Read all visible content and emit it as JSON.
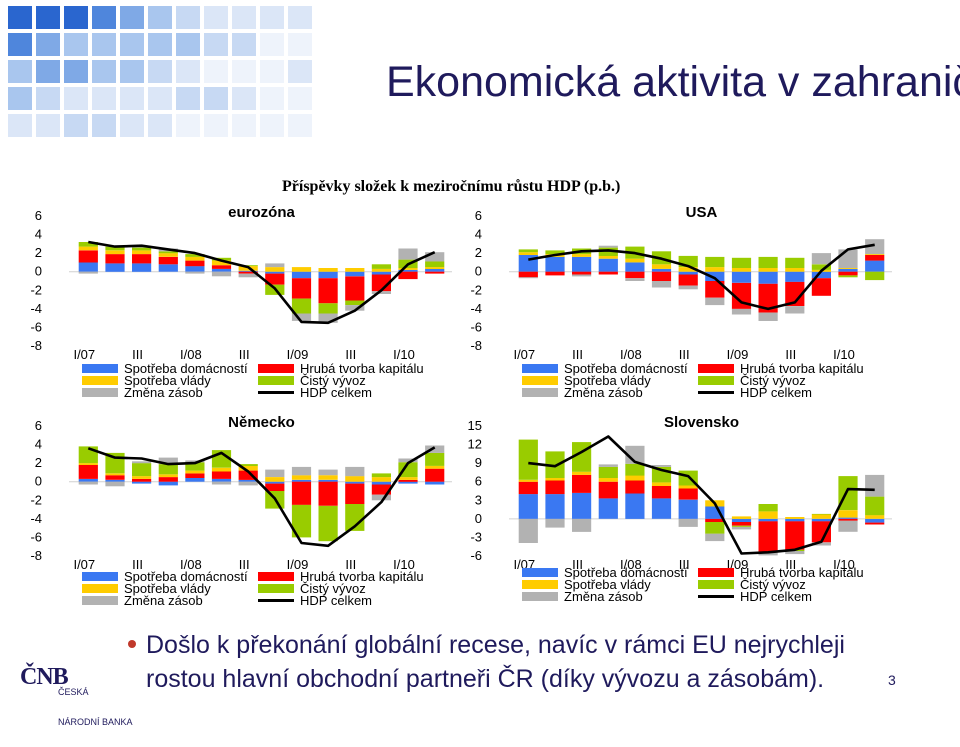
{
  "slide": {
    "title": "Ekonomická aktivita v zahraničí",
    "subtitle": "Příspěvky složek k meziročnímu růstu HDP (p.b.)",
    "conclusion_line1": "Došlo k překonání globální recese, navíc v rámci EU nejrychleji",
    "conclusion_line2": "rostou hlavní obchodní partneři ČR (díky vývozu a zásobám).",
    "page_number": "3",
    "logo": {
      "mark": "ČNB",
      "line1": "ČESKÁ",
      "line2": "NÁRODNÍ BANKA"
    }
  },
  "colors": {
    "consumption": "#3a78f2",
    "gfcf": "#ff0000",
    "government": "#ffcc00",
    "net_exports": "#99cc00",
    "inventories": "#b2b2b2",
    "gdp": "#000000"
  },
  "legend": {
    "consumption": "Spotřeba domácností",
    "gfcf": "Hrubá tvorba kapitálu",
    "government": "Spotřeba vlády",
    "net_exports": "Čistý vývoz",
    "inventories": "Změna zásob",
    "gdp": "HDP celkem"
  },
  "chart_data": [
    {
      "type": "bar",
      "title": "eurozóna",
      "categories": [
        "I/07",
        "II/07",
        "III/07",
        "IV/07",
        "I/08",
        "II/08",
        "III/08",
        "IV/08",
        "I/09",
        "II/09",
        "III/09",
        "IV/09",
        "I/10",
        "II/10"
      ],
      "tick_labels": [
        "I/07",
        "III",
        "I/08",
        "III",
        "I/09",
        "III",
        "I/10"
      ],
      "y_ticks": [
        "6",
        "4",
        "2",
        "0",
        "-2",
        "-4",
        "-6",
        "-8"
      ],
      "ylim": [
        -8,
        6
      ],
      "series": [
        {
          "name": "Spotřeba domácností",
          "values": [
            1.0,
            0.9,
            0.9,
            0.8,
            0.6,
            0.3,
            0.1,
            -0.2,
            -0.7,
            -0.7,
            -0.5,
            -0.3,
            0.2,
            0.3
          ]
        },
        {
          "name": "Hrubá tvorba kapitálu",
          "values": [
            1.3,
            1.0,
            1.0,
            0.8,
            0.6,
            0.4,
            -0.2,
            -1.2,
            -2.2,
            -2.7,
            -2.6,
            -1.8,
            -0.8,
            -0.2
          ]
        },
        {
          "name": "Spotřeba vlády",
          "values": [
            0.4,
            0.4,
            0.4,
            0.4,
            0.4,
            0.5,
            0.5,
            0.5,
            0.5,
            0.4,
            0.4,
            0.3,
            0.2,
            0.2
          ]
        },
        {
          "name": "Čistý vývoz",
          "values": [
            0.5,
            0.4,
            0.3,
            0.2,
            0.3,
            0.3,
            0.1,
            -1.1,
            -1.6,
            -1.1,
            -0.5,
            0.5,
            0.9,
            0.6
          ]
        },
        {
          "name": "Změna zásob",
          "values": [
            -0.2,
            0.1,
            0.2,
            0.3,
            -0.2,
            -0.5,
            -0.4,
            0.4,
            -0.8,
            -1.0,
            -0.6,
            -0.3,
            1.2,
            1.0
          ]
        },
        {
          "name": "HDP celkem",
          "type": "line",
          "values": [
            3.2,
            2.7,
            2.8,
            2.4,
            2.0,
            1.2,
            0.5,
            -1.8,
            -5.4,
            -5.5,
            -4.2,
            -2.0,
            0.8,
            2.1
          ]
        }
      ]
    },
    {
      "type": "bar",
      "title": "USA",
      "categories": [
        "I/07",
        "II/07",
        "III/07",
        "IV/07",
        "I/08",
        "II/08",
        "III/08",
        "IV/08",
        "I/09",
        "II/09",
        "III/09",
        "IV/09",
        "I/10",
        "II/10"
      ],
      "tick_labels": [
        "I/07",
        "III",
        "I/08",
        "III",
        "I/09",
        "III",
        "I/10"
      ],
      "y_ticks": [
        "6",
        "4",
        "2",
        "0",
        "-2",
        "-4",
        "-6",
        "-8"
      ],
      "ylim": [
        -8,
        6
      ],
      "series": [
        {
          "name": "Spotřeba domácností",
          "values": [
            1.8,
            1.6,
            1.6,
            1.4,
            1.0,
            0.3,
            -0.3,
            -1.0,
            -1.2,
            -1.3,
            -1.1,
            -0.7,
            0.3,
            1.2
          ]
        },
        {
          "name": "Hrubá tvorba kapitálu",
          "values": [
            -0.6,
            -0.4,
            -0.3,
            -0.3,
            -0.7,
            -1.0,
            -1.2,
            -1.8,
            -2.8,
            -3.1,
            -2.6,
            -1.9,
            -0.4,
            0.6
          ]
        },
        {
          "name": "Spotřeba vlády",
          "values": [
            0.3,
            0.3,
            0.3,
            0.3,
            0.4,
            0.5,
            0.5,
            0.5,
            0.4,
            0.4,
            0.4,
            0.2,
            0.1,
            0.1
          ]
        },
        {
          "name": "Čistý vývoz",
          "values": [
            0.3,
            0.4,
            0.6,
            0.9,
            1.3,
            1.4,
            1.2,
            1.1,
            1.1,
            1.2,
            1.1,
            0.6,
            -0.2,
            -0.9
          ]
        },
        {
          "name": "Změna zásob",
          "values": [
            -0.1,
            0.0,
            -0.2,
            0.2,
            -0.3,
            -0.7,
            -0.4,
            -0.8,
            -0.6,
            -0.9,
            -0.8,
            1.2,
            2.0,
            1.6
          ]
        },
        {
          "name": "HDP celkem",
          "type": "line",
          "values": [
            1.3,
            1.8,
            2.2,
            2.3,
            2.0,
            1.4,
            0.6,
            -0.7,
            -3.3,
            -4.0,
            -3.3,
            0.1,
            2.4,
            2.9
          ]
        }
      ]
    },
    {
      "type": "bar",
      "title": "Německo",
      "categories": [
        "I/07",
        "II/07",
        "III/07",
        "IV/07",
        "I/08",
        "II/08",
        "III/08",
        "IV/08",
        "I/09",
        "II/09",
        "III/09",
        "IV/09",
        "I/10",
        "II/10"
      ],
      "tick_labels": [
        "I/07",
        "III",
        "I/08",
        "III",
        "I/09",
        "III",
        "I/10"
      ],
      "y_ticks": [
        "6",
        "4",
        "2",
        "0",
        "-2",
        "-4",
        "-6",
        "-8"
      ],
      "ylim": [
        -8,
        6
      ],
      "series": [
        {
          "name": "Spotřeba domácností",
          "values": [
            0.3,
            0.2,
            -0.2,
            -0.4,
            0.4,
            0.3,
            0.2,
            -0.2,
            0.2,
            0.2,
            -0.2,
            -0.3,
            -0.2,
            -0.3
          ]
        },
        {
          "name": "Hrubá tvorba kapitálu",
          "values": [
            1.5,
            0.5,
            0.3,
            0.5,
            0.5,
            0.8,
            1.0,
            -0.8,
            -2.5,
            -2.6,
            -2.2,
            -1.1,
            0.2,
            1.4
          ]
        },
        {
          "name": "Spotřeba vlády",
          "values": [
            0.2,
            0.2,
            0.3,
            0.3,
            0.3,
            0.4,
            0.5,
            0.5,
            0.5,
            0.5,
            0.6,
            0.5,
            0.3,
            0.3
          ]
        },
        {
          "name": "Čistý vývoz",
          "values": [
            1.8,
            2.2,
            1.4,
            1.1,
            0.9,
            1.9,
            0.2,
            -1.9,
            -3.5,
            -3.8,
            -2.9,
            0.4,
            1.6,
            1.4
          ]
        },
        {
          "name": "Změna zásob",
          "values": [
            -0.3,
            -0.5,
            0.2,
            0.7,
            0.2,
            -0.3,
            -0.4,
            0.8,
            0.9,
            0.6,
            1.0,
            -0.6,
            0.4,
            0.8
          ]
        },
        {
          "name": "HDP celkem",
          "type": "line",
          "values": [
            3.6,
            2.6,
            2.5,
            1.9,
            2.0,
            3.1,
            1.1,
            -1.8,
            -6.6,
            -6.9,
            -4.8,
            -2.2,
            2.0,
            3.7
          ]
        }
      ]
    },
    {
      "type": "bar",
      "title": "Slovensko",
      "categories": [
        "I/07",
        "II/07",
        "III/07",
        "IV/07",
        "I/08",
        "II/08",
        "III/08",
        "IV/08",
        "I/09",
        "II/09",
        "III/09",
        "IV/09",
        "I/10",
        "II/10"
      ],
      "tick_labels": [
        "I/07",
        "III",
        "I/08",
        "III",
        "I/09",
        "III",
        "I/10"
      ],
      "y_ticks": [
        "15",
        "12",
        "9",
        "6",
        "3",
        "0",
        "-3",
        "-6"
      ],
      "ylim": [
        -6,
        15
      ],
      "series": [
        {
          "name": "Spotřeba domácností",
          "values": [
            4.0,
            4.0,
            4.2,
            3.3,
            4.1,
            3.3,
            3.1,
            2.0,
            -0.5,
            -0.4,
            -0.4,
            -0.4,
            0.2,
            -0.6
          ]
        },
        {
          "name": "Hrubá tvorba kapitálu",
          "values": [
            2.0,
            2.2,
            2.9,
            2.7,
            2.1,
            2.0,
            1.8,
            -0.5,
            -0.6,
            -4.9,
            -4.6,
            -3.4,
            -0.3,
            -0.3
          ]
        },
        {
          "name": "Spotřeba vlády",
          "values": [
            0.3,
            0.4,
            0.5,
            0.6,
            0.8,
            0.6,
            0.5,
            1.0,
            0.4,
            1.2,
            0.3,
            0.7,
            1.2,
            0.6
          ]
        },
        {
          "name": "Čistý vývoz",
          "values": [
            6.5,
            4.3,
            4.8,
            1.8,
            1.9,
            2.5,
            2.4,
            -1.9,
            -0.2,
            1.2,
            -0.2,
            0.1,
            5.5,
            3.0
          ]
        },
        {
          "name": "Změna zásob",
          "values": [
            -3.9,
            -1.4,
            -2.1,
            0.4,
            2.9,
            0.3,
            -1.3,
            -1.2,
            -0.4,
            -0.6,
            -0.5,
            -0.5,
            -1.8,
            3.5
          ]
        },
        {
          "name": "HDP celkem",
          "type": "line",
          "values": [
            9.0,
            8.5,
            10.8,
            13.3,
            9.2,
            7.9,
            6.9,
            2.5,
            -5.6,
            -5.4,
            -5.0,
            -3.7,
            4.8,
            4.7
          ]
        }
      ]
    }
  ]
}
